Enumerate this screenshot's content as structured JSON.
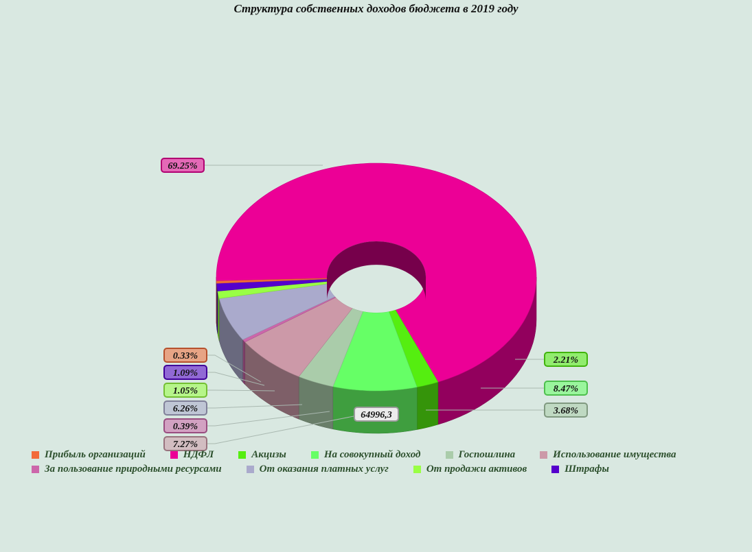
{
  "chart_data": {
    "type": "pie",
    "title": "Структура собственных доходов бюджета в 2019 году",
    "center_label": "64996,3",
    "slices": [
      {
        "name": "Прибыль организаций",
        "value": 0.33,
        "label": "0.33%",
        "color": "#f26b3a"
      },
      {
        "name": "НДФЛ",
        "value": 69.25,
        "label": "69.25%",
        "color": "#ec0096"
      },
      {
        "name": "Акцизы",
        "value": 2.21,
        "label": "2.21%",
        "color": "#55ee10"
      },
      {
        "name": "На совокупный доход",
        "value": 8.47,
        "label": "8.47%",
        "color": "#66ff66"
      },
      {
        "name": "Госпошлина",
        "value": 3.68,
        "label": "3.68%",
        "color": "#aaccaa"
      },
      {
        "name": "Использование имущества",
        "value": 7.27,
        "label": "7.27%",
        "color": "#cc99a8"
      },
      {
        "name": "За пользование природными ресурсами",
        "value": 0.39,
        "label": "0.39%",
        "color": "#cc66aa"
      },
      {
        "name": "От оказания платных услуг",
        "value": 6.26,
        "label": "6.26%",
        "color": "#aaaacc"
      },
      {
        "name": "От продажи активов",
        "value": 1.05,
        "label": "1.05%",
        "color": "#99ff44"
      },
      {
        "name": "Штрафы",
        "value": 1.09,
        "label": "1.09%",
        "color": "#5500cc"
      }
    ],
    "legend_position": "bottom"
  }
}
